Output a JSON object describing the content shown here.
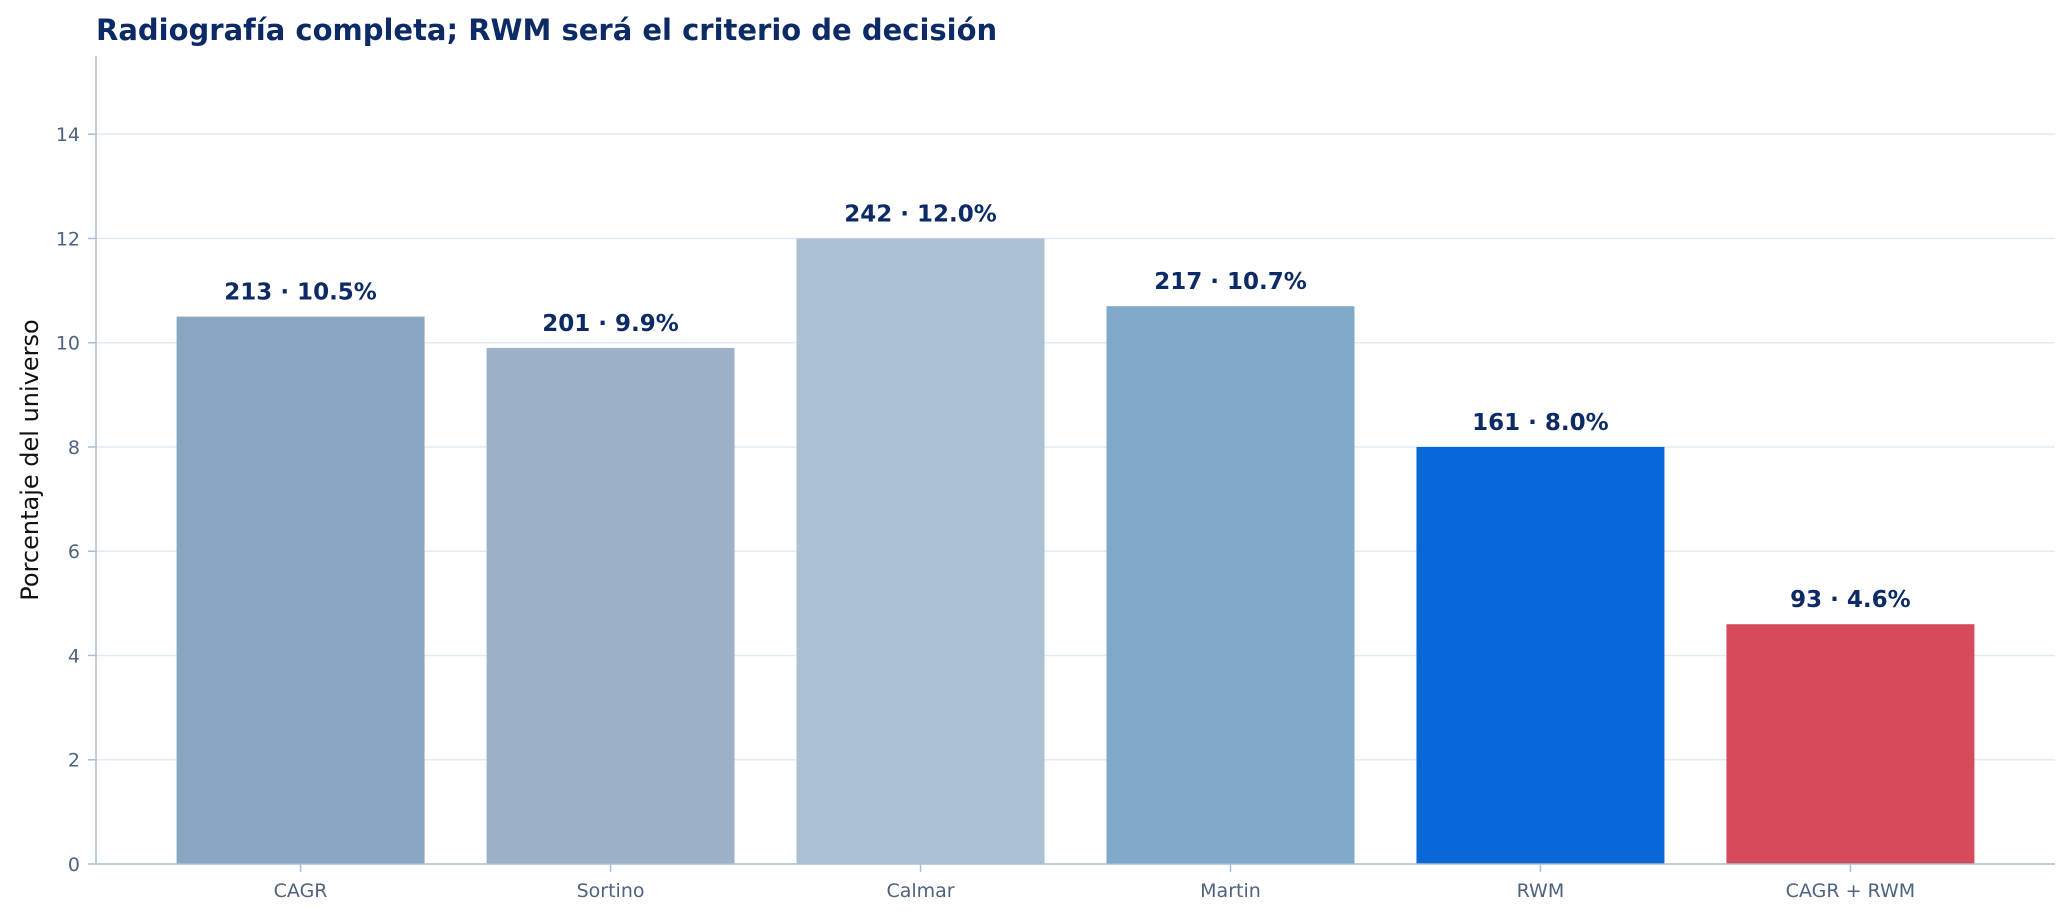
{
  "chart_data": {
    "type": "bar",
    "title": "Radiografía completa; RWM será el criterio de decisión",
    "xlabel": "",
    "ylabel": "Porcentaje del universo",
    "ylim": [
      0,
      15.5
    ],
    "yticks": [
      0,
      2,
      4,
      6,
      8,
      10,
      12,
      14
    ],
    "grid": true,
    "categories": [
      "CAGR",
      "Sortino",
      "Calmar",
      "Martin",
      "RWM",
      "CAGR + RWM"
    ],
    "values": [
      10.5,
      9.9,
      12.0,
      10.7,
      8.0,
      4.6
    ],
    "counts": [
      213,
      201,
      242,
      217,
      161,
      93
    ],
    "data_labels": [
      "213 · 10.5%",
      "201 · 9.9%",
      "242 · 12.0%",
      "217 · 10.7%",
      "161 · 8.0%",
      "93 · 4.6%"
    ],
    "colors": [
      "#88a5c1",
      "#9db2c9",
      "#abc0d4",
      "#7fa8c9",
      "#0868d8",
      "#d64a5c"
    ]
  },
  "style": {
    "title_color": "#0b2a66",
    "grid_color": "#e3eaf2",
    "axis_color": "#a9bdd3"
  }
}
